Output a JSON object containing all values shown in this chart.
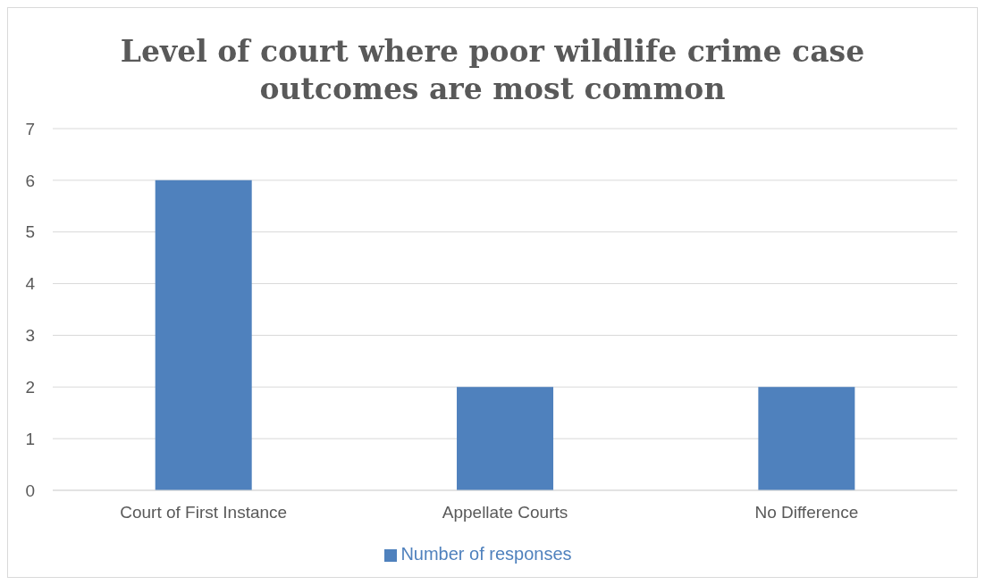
{
  "chart_data": {
    "type": "bar",
    "title": "Level of court where poor wildlife crime case outcomes are most common",
    "categories": [
      "Court of First Instance",
      "Appellate Courts",
      "No Difference"
    ],
    "series": [
      {
        "name": "Number of responses",
        "color": "#4f81bd",
        "values": [
          6,
          2,
          2
        ]
      }
    ],
    "ylim": [
      0,
      7
    ],
    "yticks": [
      0,
      1,
      2,
      3,
      4,
      5,
      6,
      7
    ],
    "grid": "y",
    "legend": "bottom"
  }
}
